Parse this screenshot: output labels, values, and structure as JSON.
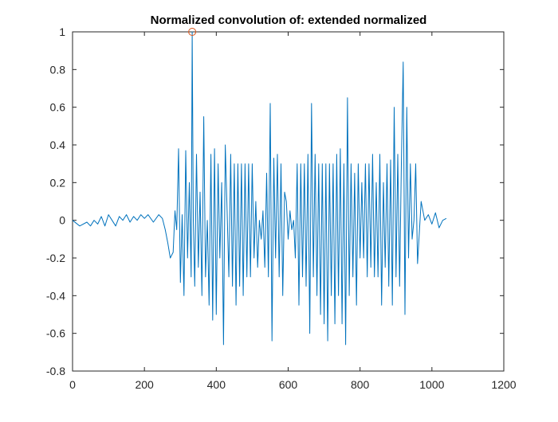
{
  "chart_data": {
    "type": "line",
    "title": "Normalized convolution of: extended normalized",
    "xlabel": "",
    "ylabel": "",
    "xlim": [
      0,
      1200
    ],
    "ylim": [
      -0.8,
      1
    ],
    "xticks": [
      0,
      200,
      400,
      600,
      800,
      1000,
      1200
    ],
    "yticks": [
      -0.8,
      -0.6,
      -0.4,
      -0.2,
      0,
      0.2,
      0.4,
      0.6,
      0.8,
      1
    ],
    "grid": false,
    "legend": "none",
    "colors": {
      "line": "#0072BD",
      "marker": "#D95319",
      "axes": "#262626"
    },
    "series": [
      {
        "x": [
          0,
          20,
          40,
          50,
          60,
          70,
          80,
          90,
          100,
          110,
          120,
          130,
          140,
          150,
          160,
          170,
          180,
          190,
          200,
          210,
          225,
          240,
          250,
          258,
          265,
          272,
          280,
          285,
          290,
          295,
          300,
          305,
          310,
          315,
          320,
          325,
          330,
          333,
          336,
          340,
          345,
          350,
          355,
          360,
          365,
          370,
          375,
          380,
          385,
          390,
          395,
          400,
          405,
          410,
          415,
          420,
          425,
          430,
          435,
          440,
          445,
          450,
          455,
          460,
          465,
          470,
          475,
          480,
          485,
          490,
          495,
          500,
          505,
          510,
          515,
          520,
          525,
          530,
          535,
          540,
          545,
          550,
          555,
          560,
          565,
          570,
          575,
          580,
          585,
          590,
          595,
          600,
          605,
          610,
          615,
          620,
          625,
          630,
          635,
          640,
          645,
          650,
          655,
          660,
          665,
          670,
          675,
          680,
          685,
          690,
          695,
          700,
          705,
          710,
          715,
          720,
          725,
          730,
          735,
          740,
          745,
          750,
          755,
          760,
          765,
          770,
          775,
          780,
          785,
          790,
          795,
          800,
          805,
          810,
          815,
          820,
          825,
          830,
          835,
          840,
          845,
          850,
          855,
          860,
          865,
          870,
          875,
          880,
          885,
          890,
          895,
          900,
          905,
          910,
          915,
          920,
          925,
          930,
          935,
          940,
          945,
          950,
          955,
          960,
          970,
          980,
          990,
          1000,
          1010,
          1020,
          1030,
          1040
        ],
        "y": [
          0,
          -0.03,
          -0.01,
          -0.03,
          0.0,
          -0.02,
          0.02,
          -0.03,
          0.03,
          0.0,
          -0.03,
          0.02,
          0.0,
          0.03,
          -0.01,
          0.02,
          0.0,
          0.03,
          0.01,
          0.03,
          -0.01,
          0.03,
          0.01,
          -0.05,
          -0.12,
          -0.2,
          -0.17,
          0.05,
          -0.05,
          0.38,
          -0.33,
          0.03,
          -0.4,
          0.37,
          -0.2,
          0.2,
          -0.3,
          1.0,
          0.0,
          -0.35,
          0.35,
          -0.25,
          0.15,
          -0.4,
          0.55,
          -0.3,
          0.0,
          -0.45,
          0.35,
          -0.53,
          0.38,
          -0.5,
          0.3,
          -0.2,
          0.2,
          -0.66,
          0.4,
          0.05,
          -0.3,
          0.35,
          -0.35,
          0.3,
          -0.45,
          0.3,
          -0.35,
          0.3,
          -0.4,
          0.3,
          -0.3,
          0.3,
          -0.3,
          0.3,
          -0.2,
          0.1,
          -0.25,
          0.0,
          -0.1,
          0.05,
          -0.25,
          0.25,
          -0.3,
          0.62,
          -0.64,
          0.33,
          -0.2,
          0.35,
          -0.3,
          0.3,
          -0.4,
          0.15,
          0.1,
          -0.1,
          0.05,
          -0.05,
          0.0,
          -0.2,
          0.3,
          -0.45,
          0.3,
          -0.3,
          0.3,
          -0.35,
          0.35,
          -0.6,
          0.62,
          -0.3,
          0.35,
          -0.4,
          0.3,
          -0.5,
          0.3,
          -0.55,
          0.3,
          -0.64,
          0.3,
          -0.4,
          0.3,
          -0.55,
          0.35,
          -0.4,
          0.38,
          -0.55,
          0.3,
          -0.66,
          0.65,
          -0.4,
          0.3,
          -0.3,
          0.25,
          -0.45,
          0.3,
          -0.2,
          0.2,
          -0.2,
          0.3,
          -0.3,
          0.3,
          -0.25,
          0.35,
          -0.3,
          0.2,
          -0.3,
          0.35,
          -0.45,
          0.2,
          -0.25,
          0.3,
          -0.35,
          0.32,
          -0.45,
          0.6,
          -0.3,
          0.35,
          -0.35,
          0.3,
          0.84,
          -0.5,
          0.6,
          -0.2,
          0.3,
          -0.1,
          0.0,
          0.3,
          -0.23,
          0.1,
          0.0,
          0.03,
          -0.02,
          0.04,
          -0.04,
          0.0,
          0.01
        ]
      }
    ],
    "peak_marker": {
      "x": 333,
      "y": 1.0
    }
  }
}
